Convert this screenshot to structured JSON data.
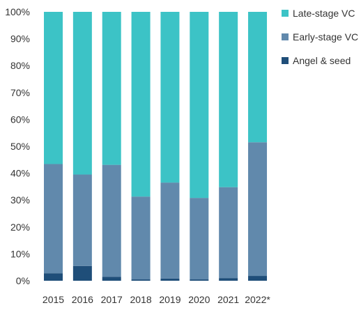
{
  "chart_data": {
    "type": "bar",
    "stacked": true,
    "categories": [
      "2015",
      "2016",
      "2017",
      "2018",
      "2019",
      "2020",
      "2021",
      "2022*"
    ],
    "ylim": [
      0,
      100
    ],
    "yticks": [
      "0%",
      "10%",
      "20%",
      "30%",
      "40%",
      "50%",
      "60%",
      "70%",
      "80%",
      "90%",
      "100%"
    ],
    "grid": false,
    "legend_position": "right",
    "series": [
      {
        "name": "Angel & seed",
        "color": "#1f4e79",
        "values": [
          2.8,
          5.5,
          1.5,
          0.5,
          0.8,
          0.5,
          1.0,
          1.8
        ]
      },
      {
        "name": "Early-stage VC",
        "color": "#6189ac",
        "values": [
          40.6,
          34.0,
          41.6,
          30.8,
          35.7,
          30.3,
          33.8,
          49.7
        ]
      },
      {
        "name": "Late-stage VC",
        "color": "#3cc3c6",
        "values": [
          56.6,
          60.5,
          56.9,
          68.7,
          63.5,
          69.2,
          65.2,
          48.5
        ]
      }
    ],
    "legend_order": [
      "Late-stage VC",
      "Early-stage VC",
      "Angel & seed"
    ]
  }
}
